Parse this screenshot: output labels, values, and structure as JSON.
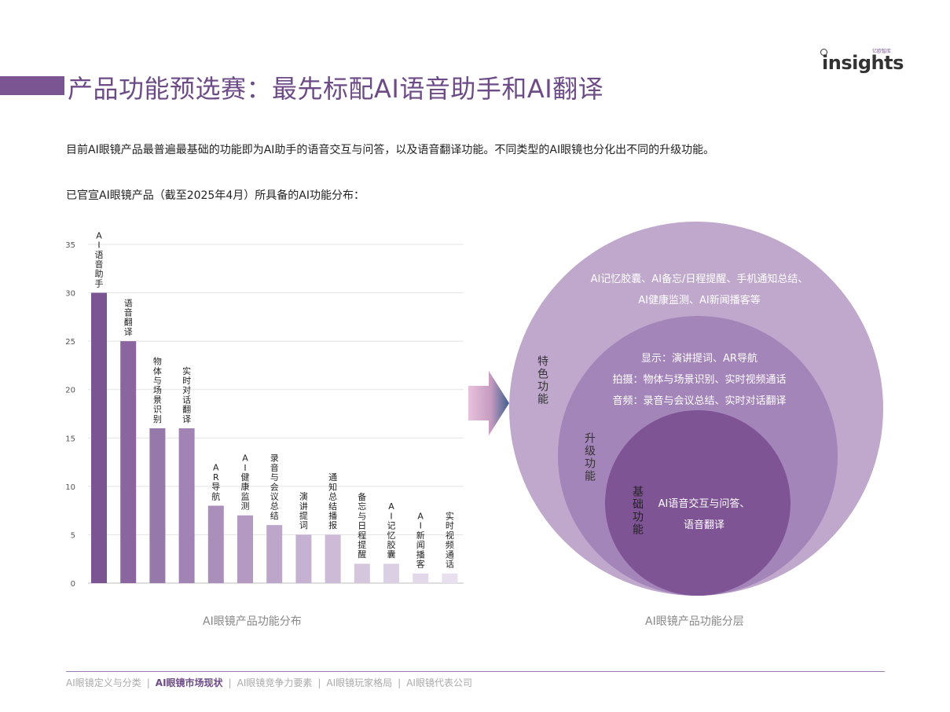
{
  "header": {
    "title": "产品功能预选赛：最先标配AI语音助手和AI翻译",
    "logo_word": "insights",
    "logo_tag": "亿欧智库"
  },
  "intro": "目前AI眼镜产品最普遍最基础的功能即为AI助手的语音交互与问答，以及语音翻译功能。不同类型的AI眼镜也分化出不同的升级功能。",
  "subhead": "已官宣AI眼镜产品（截至2025年4月）所具备的AI功能分布：",
  "chart_data": {
    "type": "bar",
    "categories": [
      "AI语音助手",
      "语音翻译",
      "物体与场景识别",
      "实时对话翻译",
      "AR导航",
      "AI健康监测",
      "录音与会议总结",
      "演讲提词",
      "通知总结播报",
      "备忘与日程提醒",
      "AI记忆胶囊",
      "AI新闻播客",
      "实时视频通话"
    ],
    "values": [
      30,
      25,
      16,
      16,
      8,
      7,
      6,
      5,
      5,
      2,
      2,
      1,
      1
    ],
    "colors": [
      "#7b5492",
      "#8a65a0",
      "#9678aa",
      "#a184b3",
      "#ab8fbb",
      "#b49ac2",
      "#bca6c9",
      "#c5b1d1",
      "#ccbad6",
      "#d5c6de",
      "#dbcfe3",
      "#e2d8e9",
      "#e8e0ee"
    ],
    "yticks": [
      0,
      5,
      10,
      15,
      20,
      25,
      30,
      35
    ],
    "ylim": [
      0,
      35
    ],
    "grid": true,
    "caption": "AI眼镜产品功能分布"
  },
  "layers": {
    "caption": "AI眼镜产品功能分层",
    "outer": {
      "label": "特色功能",
      "lines": [
        "AI记忆胶囊、AI备忘/日程提醒、手机通知总结、",
        "AI健康监测、AI新闻播客等"
      ]
    },
    "middle": {
      "label": "升级功能",
      "lines": [
        "显示：演讲提词、AR导航",
        "拍摄：物体与场景识别、实时视频通话",
        "音频：录音与会议总结、实时对话翻译"
      ]
    },
    "inner": {
      "label": "基础功能",
      "lines": [
        "AI语音交互与问答、",
        "语音翻译"
      ]
    },
    "colors": {
      "outer": "#bfa8cc",
      "middle": "#a485b9",
      "inner": "#7e5495"
    }
  },
  "footer": {
    "items": [
      "AI眼镜定义与分类",
      "AI眼镜市场现状",
      "AI眼镜竞争力要素",
      "AI眼镜玩家格局",
      "AI眼镜代表公司"
    ],
    "active_index": 1
  }
}
